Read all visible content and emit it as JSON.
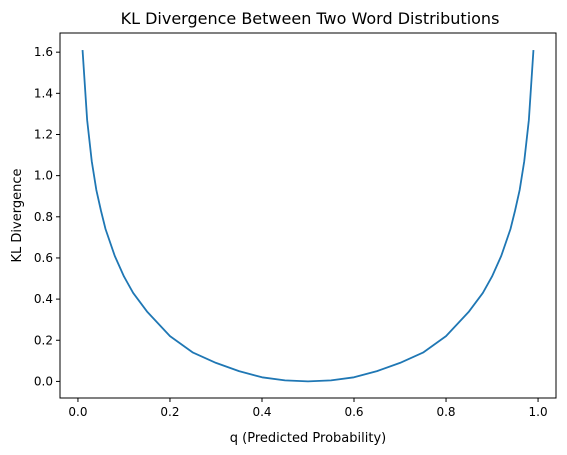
{
  "chart_data": {
    "type": "line",
    "title": "KL Divergence Between Two Word Distributions",
    "xlabel": "q (Predicted Probability)",
    "ylabel": "KL Divergence",
    "xlim": [
      -0.039,
      1.039
    ],
    "ylim": [
      -0.0806,
      1.6932
    ],
    "xticks": [
      0.0,
      0.2,
      0.4,
      0.6,
      0.8,
      1.0
    ],
    "xtick_labels": [
      "0.0",
      "0.2",
      "0.4",
      "0.6",
      "0.8",
      "1.0"
    ],
    "yticks": [
      0.0,
      0.2,
      0.4,
      0.6,
      0.8,
      1.0,
      1.2,
      1.4,
      1.6
    ],
    "ytick_labels": [
      "0.0",
      "0.2",
      "0.4",
      "0.6",
      "0.8",
      "1.0",
      "1.2",
      "1.4",
      "1.6"
    ],
    "grid": false,
    "colors": {
      "line": "#1f77b4"
    },
    "series": [
      {
        "x": [
          0.01,
          0.02,
          0.03,
          0.04,
          0.05,
          0.06,
          0.08,
          0.1,
          0.12,
          0.15,
          0.2,
          0.25,
          0.3,
          0.35,
          0.4,
          0.45,
          0.5,
          0.55,
          0.6,
          0.65,
          0.7,
          0.75,
          0.8,
          0.85,
          0.88,
          0.9,
          0.92,
          0.94,
          0.95,
          0.96,
          0.97,
          0.98,
          0.99
        ],
        "y": [
          1.61,
          1.27,
          1.07,
          0.93,
          0.83,
          0.74,
          0.61,
          0.51,
          0.43,
          0.34,
          0.22,
          0.14,
          0.09,
          0.05,
          0.02,
          0.005,
          0.0,
          0.005,
          0.02,
          0.05,
          0.09,
          0.14,
          0.22,
          0.34,
          0.43,
          0.51,
          0.61,
          0.74,
          0.83,
          0.93,
          1.07,
          1.27,
          1.61
        ]
      }
    ]
  }
}
